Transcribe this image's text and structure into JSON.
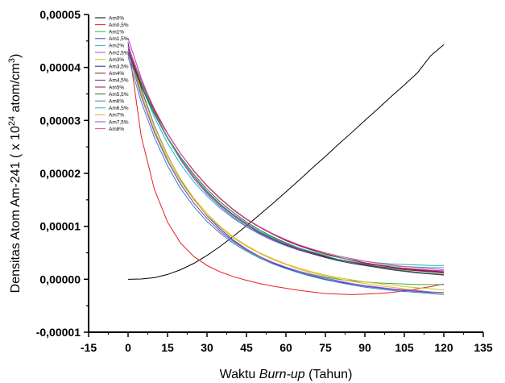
{
  "chart_data": {
    "type": "line",
    "xlabel_parts": [
      "Waktu ",
      "Burn-up",
      " (Tahun)"
    ],
    "ylabel_parts": [
      "Densitas Atom Am-241 ( x 10",
      "24",
      " atom/cm",
      "3",
      ")"
    ],
    "xlim": [
      -15,
      135
    ],
    "ylim": [
      -1e-05,
      5e-05
    ],
    "x_ticks": [
      -15,
      0,
      15,
      30,
      45,
      60,
      75,
      90,
      105,
      120,
      135
    ],
    "x_tick_labels": [
      "-15",
      "0",
      "15",
      "30",
      "45",
      "60",
      "75",
      "90",
      "105",
      "120",
      "135"
    ],
    "y_ticks": [
      -1e-05,
      0,
      1e-05,
      2e-05,
      3e-05,
      4e-05,
      5e-05
    ],
    "y_tick_labels": [
      "-0,00001",
      "0,00000",
      "0,00001",
      "0,00002",
      "0,00003",
      "0,00004",
      "0,00005"
    ],
    "grid": false,
    "legend_position": "top-left",
    "x": [
      0,
      5,
      10,
      15,
      20,
      25,
      30,
      35,
      40,
      45,
      50,
      55,
      60,
      65,
      70,
      75,
      80,
      85,
      90,
      95,
      100,
      105,
      110,
      115,
      120
    ],
    "series": [
      {
        "name": "Am0%",
        "color": "#000000",
        "values": [
          0.0,
          5e-08,
          3e-07,
          9e-07,
          1.8e-06,
          3e-06,
          4.5e-06,
          6.2e-06,
          8.1e-06,
          1.01e-05,
          1.22e-05,
          1.43e-05,
          1.65e-05,
          1.87e-05,
          2.1e-05,
          2.32e-05,
          2.55e-05,
          2.77e-05,
          3e-05,
          3.22e-05,
          3.45e-05,
          3.67e-05,
          3.9e-05,
          4.22e-05,
          4.43e-05
        ]
      },
      {
        "name": "Am0,5%",
        "color": "#e8201d",
        "values": [
          4.48e-05,
          2.7e-05,
          1.7e-05,
          1.08e-05,
          6.8e-06,
          4.3e-06,
          2.6e-06,
          1.4e-06,
          5e-07,
          -2e-07,
          -8e-07,
          -1.3e-06,
          -1.7e-06,
          -2.1e-06,
          -2.4e-06,
          -2.7e-06,
          -2.8e-06,
          -2.9e-06,
          -2.8e-06,
          -2.7e-06,
          -2.5e-06,
          -2.2e-06,
          -1.8e-06,
          -1.4e-06,
          -9e-07
        ]
      },
      {
        "name": "Am1%",
        "color": "#33b24a",
        "values": [
          4.4e-05,
          3.5e-05,
          2.8e-05,
          2.24e-05,
          1.8e-05,
          1.44e-05,
          1.15e-05,
          9.1e-06,
          7.1e-06,
          5.5e-06,
          4.2e-06,
          3.1e-06,
          2.2e-06,
          1.5e-06,
          9e-07,
          4e-07,
          0.0,
          -3e-07,
          -5e-07,
          -7e-07,
          -8e-07,
          -9e-07,
          -1e-06,
          -1e-06,
          -1e-06
        ]
      },
      {
        "name": "Am1,5%",
        "color": "#3a3acf",
        "values": [
          4.45e-05,
          3.6e-05,
          2.9e-05,
          2.34e-05,
          1.88e-05,
          1.51e-05,
          1.2e-05,
          9.5e-06,
          7.4e-06,
          5.7e-06,
          4.3e-06,
          3.1e-06,
          2.1e-06,
          1.3e-06,
          6e-07,
          0.0,
          -5e-07,
          -9e-07,
          -1.3e-06,
          -1.6e-06,
          -1.9e-06,
          -2.1e-06,
          -2.3e-06,
          -2.5e-06,
          -2.6e-06
        ]
      },
      {
        "name": "Am2%",
        "color": "#22b8cf",
        "values": [
          4.4e-05,
          3.66e-05,
          3.06e-05,
          2.57e-05,
          2.17e-05,
          1.84e-05,
          1.57e-05,
          1.34e-05,
          1.15e-05,
          9.9e-06,
          8.5e-06,
          7.3e-06,
          6.3e-06,
          5.5e-06,
          4.8e-06,
          4.2e-06,
          3.7e-06,
          3.3e-06,
          3e-06,
          2.7e-06,
          2.5e-06,
          2.4e-06,
          2.3e-06,
          2.2e-06,
          2.2e-06
        ]
      },
      {
        "name": "Am2,5%",
        "color": "#c43bc4",
        "values": [
          4.55e-05,
          3.8e-05,
          3.18e-05,
          2.67e-05,
          2.25e-05,
          1.9e-05,
          1.61e-05,
          1.37e-05,
          1.17e-05,
          1e-05,
          8.6e-06,
          7.4e-06,
          6.4e-06,
          5.5e-06,
          4.8e-06,
          4.2e-06,
          3.7e-06,
          3.3e-06,
          2.9e-06,
          2.6e-06,
          2.3e-06,
          2.1e-06,
          1.9e-06,
          1.7e-06,
          1.6e-06
        ]
      },
      {
        "name": "Am3%",
        "color": "#c8c81e",
        "values": [
          4.4e-05,
          3.56e-05,
          2.88e-05,
          2.33e-05,
          1.89e-05,
          1.53e-05,
          1.24e-05,
          1e-05,
          8e-06,
          6.4e-06,
          5e-06,
          3.9e-06,
          2.9e-06,
          2.1e-06,
          1.4e-06,
          8e-07,
          3e-07,
          -1e-07,
          -5e-07,
          -8e-07,
          -1.1e-06,
          -1.4e-06,
          -1.6e-06,
          -1.8e-06,
          -2e-06
        ]
      },
      {
        "name": "Am3,5%",
        "color": "#1f2a7a",
        "values": [
          4.4e-05,
          3.72e-05,
          3.15e-05,
          2.67e-05,
          2.27e-05,
          1.93e-05,
          1.64e-05,
          1.4e-05,
          1.2e-05,
          1.03e-05,
          8.8e-06,
          7.6e-06,
          6.5e-06,
          5.6e-06,
          4.8e-06,
          4.1e-06,
          3.5e-06,
          3e-06,
          2.6e-06,
          2.2e-06,
          1.8e-06,
          1.5e-06,
          1.2e-06,
          1e-06,
          8e-07
        ]
      },
      {
        "name": "Am4%",
        "color": "#7a1f1f",
        "values": [
          4.3e-05,
          3.66e-05,
          3.12e-05,
          2.66e-05,
          2.27e-05,
          1.94e-05,
          1.66e-05,
          1.42e-05,
          1.22e-05,
          1.05e-05,
          9e-06,
          7.8e-06,
          6.7e-06,
          5.8e-06,
          5e-06,
          4.3e-06,
          3.7e-06,
          3.2e-06,
          2.8e-06,
          2.4e-06,
          2.1e-06,
          1.8e-06,
          1.6e-06,
          1.4e-06,
          1.2e-06
        ]
      },
      {
        "name": "Am4,5%",
        "color": "#6b2a8f",
        "values": [
          4.35e-05,
          3.73e-05,
          3.2e-05,
          2.75e-05,
          2.37e-05,
          2.04e-05,
          1.76e-05,
          1.52e-05,
          1.31e-05,
          1.13e-05,
          9.8e-06,
          8.5e-06,
          7.3e-06,
          6.3e-06,
          5.5e-06,
          4.8e-06,
          4.1e-06,
          3.6e-06,
          3.1e-06,
          2.7e-06,
          2.3e-06,
          2e-06,
          1.8e-06,
          1.6e-06,
          1.4e-06
        ]
      },
      {
        "name": "Am5%",
        "color": "#8c1b4a",
        "values": [
          4.3e-05,
          3.7e-05,
          3.19e-05,
          2.75e-05,
          2.37e-05,
          2.05e-05,
          1.77e-05,
          1.53e-05,
          1.32e-05,
          1.14e-05,
          9.9e-06,
          8.6e-06,
          7.4e-06,
          6.4e-06,
          5.6e-06,
          4.8e-06,
          4.2e-06,
          3.6e-06,
          3.1e-06,
          2.7e-06,
          2.3e-06,
          2e-06,
          1.7e-06,
          1.5e-06,
          1.3e-06
        ]
      },
      {
        "name": "Am5,5%",
        "color": "#2e6b2e",
        "values": [
          4.25e-05,
          3.64e-05,
          3.12e-05,
          2.68e-05,
          2.3e-05,
          1.98e-05,
          1.7e-05,
          1.46e-05,
          1.26e-05,
          1.08e-05,
          9.3e-06,
          8e-06,
          6.9e-06,
          5.9e-06,
          5.1e-06,
          4.4e-06,
          3.7e-06,
          3.2e-06,
          2.7e-06,
          2.3e-06,
          1.9e-06,
          1.6e-06,
          1.3e-06,
          1.1e-06,
          9e-07
        ]
      },
      {
        "name": "Am6%",
        "color": "#3b82b8",
        "values": [
          4.2e-05,
          3.35e-05,
          2.68e-05,
          2.14e-05,
          1.71e-05,
          1.37e-05,
          1.09e-05,
          8.7e-06,
          6.8e-06,
          5.3e-06,
          4e-06,
          2.9e-06,
          2e-06,
          1.2e-06,
          5e-07,
          -1e-07,
          -6e-07,
          -1.1e-06,
          -1.5e-06,
          -1.8e-06,
          -2.1e-06,
          -2.3e-06,
          -2.5e-06,
          -2.7e-06,
          -2.9e-06
        ]
      },
      {
        "name": "Am6,5%",
        "color": "#2bb39a",
        "values": [
          4.4e-05,
          3.72e-05,
          3.15e-05,
          2.67e-05,
          2.27e-05,
          1.93e-05,
          1.65e-05,
          1.41e-05,
          1.21e-05,
          1.04e-05,
          9e-06,
          7.8e-06,
          6.8e-06,
          5.9e-06,
          5.2e-06,
          4.6e-06,
          4.1e-06,
          3.7e-06,
          3.4e-06,
          3.1e-06,
          2.9e-06,
          2.8e-06,
          2.7e-06,
          2.6e-06,
          2.6e-06
        ]
      },
      {
        "name": "Am7%",
        "color": "#f0a830",
        "values": [
          4.3e-05,
          3.48e-05,
          2.82e-05,
          2.28e-05,
          1.85e-05,
          1.5e-05,
          1.21e-05,
          9.8e-06,
          7.8e-06,
          6.2e-06,
          4.9e-06,
          3.7e-06,
          2.8e-06,
          1.9e-06,
          1.2e-06,
          6e-07,
          1e-07,
          -4e-07,
          -8e-07,
          -1.2e-06,
          -1.5e-06,
          -1.8e-06,
          -2.1e-06,
          -2.4e-06,
          -2.6e-06
        ]
      },
      {
        "name": "Am7,5%",
        "color": "#8a4fd6",
        "values": [
          4.3e-05,
          3.45e-05,
          2.77e-05,
          2.23e-05,
          1.79e-05,
          1.44e-05,
          1.15e-05,
          9.1e-06,
          7.2e-06,
          5.6e-06,
          4.3e-06,
          3.2e-06,
          2.3e-06,
          1.5e-06,
          8e-07,
          2e-07,
          -3e-07,
          -8e-07,
          -1.2e-06,
          -1.5e-06,
          -1.8e-06,
          -2e-06,
          -2.2e-06,
          -2.4e-06,
          -2.5e-06
        ]
      },
      {
        "name": "Am8%",
        "color": "#e04f8a",
        "values": [
          4.4e-05,
          3.76e-05,
          3.22e-05,
          2.76e-05,
          2.37e-05,
          2.04e-05,
          1.76e-05,
          1.52e-05,
          1.32e-05,
          1.14e-05,
          9.9e-06,
          8.6e-06,
          7.5e-06,
          6.5e-06,
          5.7e-06,
          5e-06,
          4.4e-06,
          3.9e-06,
          3.4e-06,
          3e-06,
          2.7e-06,
          2.4e-06,
          2.2e-06,
          2e-06,
          1.8e-06
        ]
      }
    ]
  }
}
